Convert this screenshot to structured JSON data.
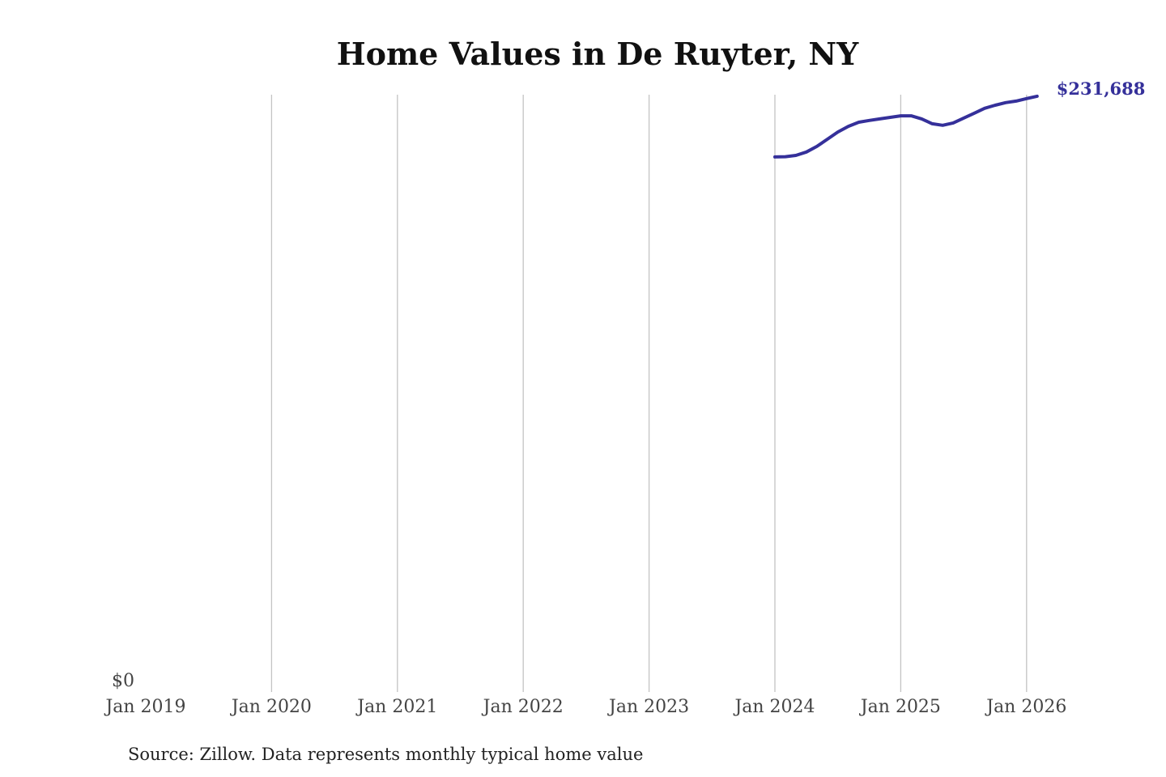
{
  "chart_data": {
    "type": "line",
    "title": "Home Values in De Ruyter, NY",
    "source": "Source: Zillow. Data represents monthly typical home value",
    "xlabel": "",
    "ylabel": "",
    "x_ticks": [
      "Jan 2019",
      "Jan 2020",
      "Jan 2021",
      "Jan 2022",
      "Jan 2023",
      "Jan 2024",
      "Jan 2025",
      "Jan 2026"
    ],
    "y_ticks": [
      "$0"
    ],
    "ylim": [
      0,
      232300
    ],
    "xlim": [
      "2019-01",
      "2026-02"
    ],
    "grid": "vertical gridlines at each January",
    "legend": "none",
    "line_color": "#35309a",
    "end_label": "$231,688",
    "series": [
      {
        "x": [
          "2024-01",
          "2024-02",
          "2024-03",
          "2024-04",
          "2024-05",
          "2024-06",
          "2024-07",
          "2024-08",
          "2024-09",
          "2024-10",
          "2024-11",
          "2024-12",
          "2025-01",
          "2025-02",
          "2025-03",
          "2025-04",
          "2025-05",
          "2025-06",
          "2025-07",
          "2025-08",
          "2025-09",
          "2025-10",
          "2025-11",
          "2025-12",
          "2026-01",
          "2026-02"
        ],
        "values": [
          208100,
          208200,
          208700,
          210000,
          212200,
          215000,
          217800,
          220000,
          221600,
          222300,
          222900,
          223500,
          224100,
          224100,
          222900,
          221000,
          220400,
          221300,
          223200,
          225100,
          227000,
          228200,
          229200,
          229800,
          230800,
          231688
        ]
      }
    ]
  }
}
